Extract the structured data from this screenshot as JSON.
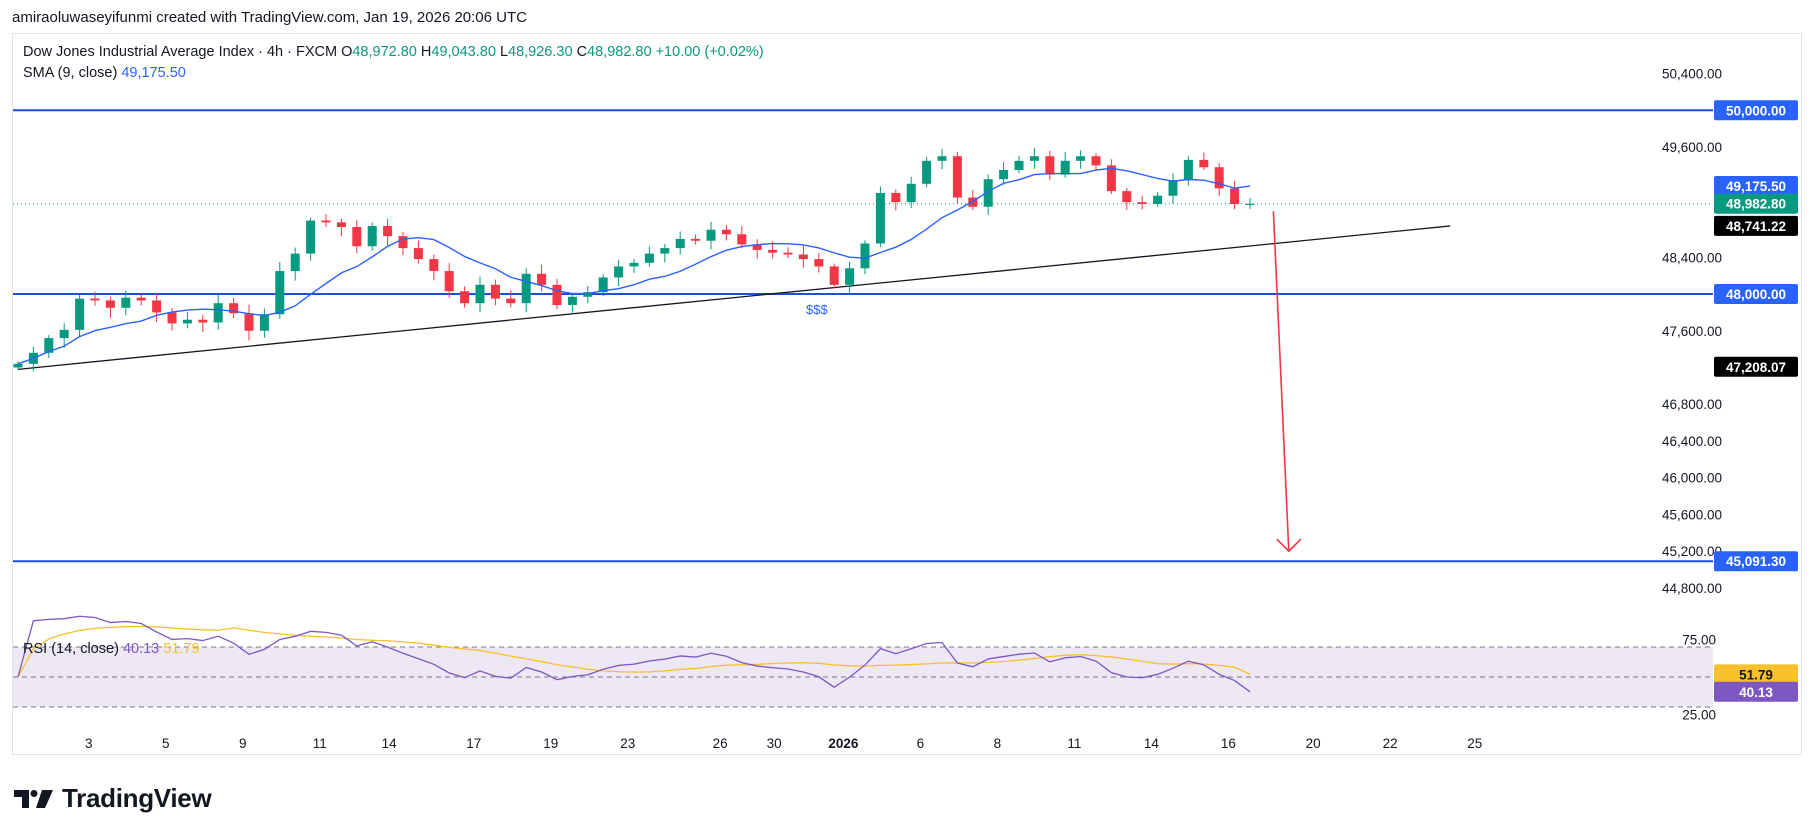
{
  "credit": "amiraoluwaseyifunmi created with TradingView.com, Jan 19, 2026 20:06 UTC",
  "legend": {
    "symbol": "Dow Jones Industrial Average Index · 4h · FXCM",
    "o_label": "O",
    "o_value": "48,972.80",
    "h_label": "H",
    "h_value": "49,043.80",
    "l_label": "L",
    "l_value": "48,926.30",
    "c_label": "C",
    "c_value": "48,982.80",
    "change": "+10.00 (+0.02%)",
    "sma_label": "SMA (9, close)",
    "sma_value": "49,175.50",
    "rsi_label": "RSI (14, close)",
    "rsi_value": "40.13",
    "rsi_ma_value": "51.79"
  },
  "brand": {
    "name": "TradingView"
  },
  "colors": {
    "up": "#089981",
    "down": "#f23645",
    "sma": "#2962ff",
    "hline": "#1e4fd8",
    "trend": "#131722",
    "arrow": "#f23645",
    "rsi": "#7e57c2",
    "rsi_ma": "#f7c12b",
    "rsi_band": "#ede7f6"
  },
  "chart_data": [
    {
      "type": "line",
      "title": "Dow Jones Industrial Average Index · 4h · FXCM",
      "x_tick_labels": [
        "3",
        "5",
        "9",
        "11",
        "14",
        "17",
        "19",
        "23",
        "26",
        "30",
        "2026",
        "6",
        "8",
        "11",
        "14",
        "16",
        "20",
        "22",
        "25"
      ],
      "y_tick_labels": [
        "50,400.00",
        "49,600.00",
        "48,400.00",
        "47,600.00",
        "46,800.00",
        "46,400.00",
        "46,000.00",
        "45,600.00",
        "45,200.00",
        "44,800.00"
      ],
      "ylim": [
        44560,
        50700
      ],
      "grid": false,
      "series": [
        {
          "name": "Dow Jones Industrial Average Index",
          "description": "approximate closing path (index points) read from candles",
          "values": [
            47240,
            47360,
            47520,
            47610,
            47950,
            47930,
            47850,
            47960,
            47930,
            47800,
            47680,
            47720,
            47690,
            47900,
            47790,
            47600,
            47780,
            48250,
            48440,
            48800,
            48780,
            48730,
            48520,
            48740,
            48630,
            48500,
            48380,
            48250,
            48030,
            47900,
            48100,
            47950,
            47900,
            48220,
            48100,
            47880,
            47970,
            48020,
            48180,
            48300,
            48340,
            48440,
            48500,
            48600,
            48580,
            48700,
            48650,
            48540,
            48480,
            48450,
            48430,
            48380,
            48300,
            48100,
            48280,
            48550,
            49100,
            49000,
            49200,
            49450,
            49500,
            49050,
            48950,
            49250,
            49350,
            49450,
            49500,
            49300,
            49450,
            49500,
            49400,
            49120,
            49000,
            48980,
            49070,
            49240,
            49460,
            49380,
            49150,
            48980,
            48982.8
          ]
        },
        {
          "name": "SMA (9, close)",
          "last": 49175.5
        }
      ],
      "annotations": {
        "horizontal_lines": [
          {
            "value": 50000,
            "label": "50,000.00"
          },
          {
            "value": 48000,
            "label": "48,000.00"
          },
          {
            "value": 45091.3,
            "label": "45,091.30"
          }
        ],
        "price_labels": [
          {
            "value": 49175.5,
            "label": "49,175.50",
            "kind": "sma"
          },
          {
            "value": 48982.8,
            "label": "48,982.80",
            "kind": "last"
          },
          {
            "value": 48741.22,
            "label": "48,741.22",
            "kind": "marker"
          },
          {
            "value": 47208.07,
            "label": "47,208.07",
            "kind": "marker"
          }
        ],
        "trendline": {
          "from": [
            0,
            47180
          ],
          "to": [
            93,
            48741.22
          ]
        },
        "arrow": {
          "from": [
            81,
            48900
          ],
          "to": [
            82,
            45200
          ]
        },
        "text": "$$$"
      }
    },
    {
      "type": "line",
      "title": "RSI (14, close)",
      "ylim": [
        20,
        80
      ],
      "y_tick_labels": [
        "75.00",
        "25.00"
      ],
      "bands": [
        70,
        50,
        30
      ],
      "series": [
        {
          "name": "RSI",
          "last": 40.13
        },
        {
          "name": "RSI MA",
          "last": 51.79
        }
      ]
    }
  ]
}
